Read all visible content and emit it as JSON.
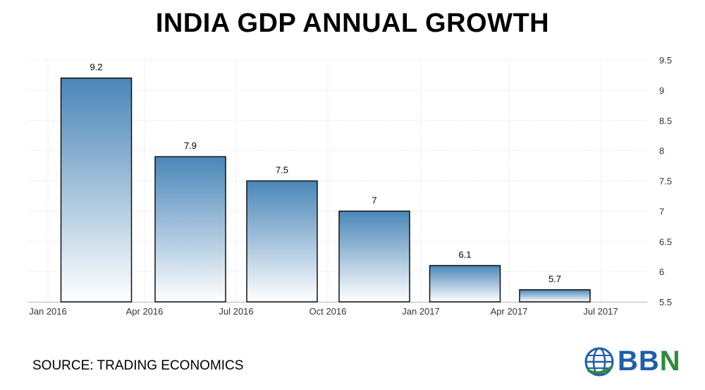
{
  "chart_data": {
    "type": "bar",
    "title": "INDIA GDP ANNUAL GROWTH",
    "categories": [
      "Jan 2016",
      "Apr 2016",
      "Jul 2016",
      "Oct 2016",
      "Jan 2017",
      "Apr 2017"
    ],
    "values": [
      9.2,
      7.9,
      7.5,
      7,
      6.1,
      5.7
    ],
    "data_labels": [
      "9.2",
      "7.9",
      "7.5",
      "7",
      "6.1",
      "5.7"
    ],
    "x_ticks": [
      "Jan 2016",
      "Apr 2016",
      "Jul 2016",
      "Oct 2016",
      "Jan 2017",
      "Apr 2017",
      "Jul 2017"
    ],
    "y_ticks": [
      "5.5",
      "6",
      "6.5",
      "7",
      "7.5",
      "8",
      "8.5",
      "9",
      "9.5"
    ],
    "ylim": [
      5.5,
      9.5
    ],
    "y_axis_side": "right",
    "grid": true,
    "xlabel": "",
    "ylabel": "",
    "bar_color_top": "#4a86b8",
    "bar_color_bottom": "#ffffff"
  },
  "source_label": "SOURCE: TRADING ECONOMICS",
  "brand": {
    "logo_text_1": "BB",
    "logo_text_2": "N",
    "globe_icon": "globe-icon",
    "color_blue": "#1f5fa8",
    "color_green": "#2e8b3a"
  }
}
